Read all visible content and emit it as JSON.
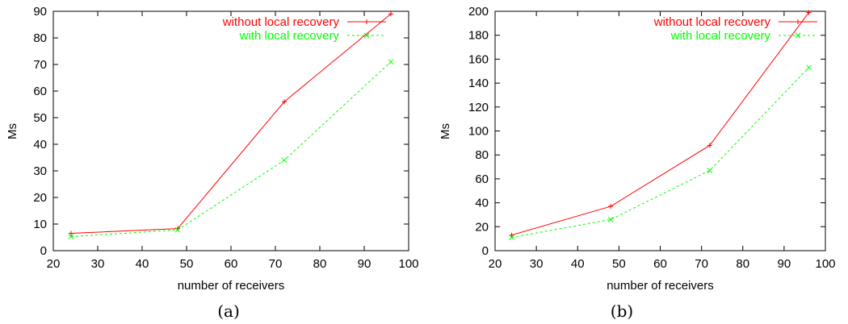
{
  "chart_data": [
    {
      "type": "line",
      "caption": "(a)",
      "xlabel": "number of receivers",
      "ylabel": "Ms",
      "xlim": [
        20,
        100
      ],
      "ylim": [
        0,
        90
      ],
      "xticks": [
        20,
        30,
        40,
        50,
        60,
        70,
        80,
        90,
        100
      ],
      "yticks": [
        0,
        10,
        20,
        30,
        40,
        50,
        60,
        70,
        80,
        90
      ],
      "grid": false,
      "legend_position": "top-right",
      "series": [
        {
          "name": "without local recovery",
          "color": "#ff0000",
          "dash": false,
          "marker": "plus",
          "x": [
            24,
            48,
            72,
            96
          ],
          "y": [
            6.5,
            8.3,
            56,
            89
          ]
        },
        {
          "name": "with local recovery",
          "color": "#00ff00",
          "dash": true,
          "marker": "cross",
          "x": [
            24,
            48,
            72,
            96
          ],
          "y": [
            5.3,
            7.8,
            34,
            71
          ]
        }
      ]
    },
    {
      "type": "line",
      "caption": "(b)",
      "xlabel": "number of receivers",
      "ylabel": "Ms",
      "xlim": [
        20,
        100
      ],
      "ylim": [
        0,
        200
      ],
      "xticks": [
        20,
        30,
        40,
        50,
        60,
        70,
        80,
        90,
        100
      ],
      "yticks": [
        0,
        20,
        40,
        60,
        80,
        100,
        120,
        140,
        160,
        180,
        200
      ],
      "grid": false,
      "legend_position": "top-right",
      "series": [
        {
          "name": "without local recovery",
          "color": "#ff0000",
          "dash": false,
          "marker": "plus",
          "x": [
            24,
            48,
            72,
            96
          ],
          "y": [
            13,
            37,
            88,
            199
          ]
        },
        {
          "name": "with local recovery",
          "color": "#00ff00",
          "dash": true,
          "marker": "cross",
          "x": [
            24,
            48,
            72,
            96
          ],
          "y": [
            11,
            26,
            67,
            153
          ]
        }
      ]
    }
  ]
}
